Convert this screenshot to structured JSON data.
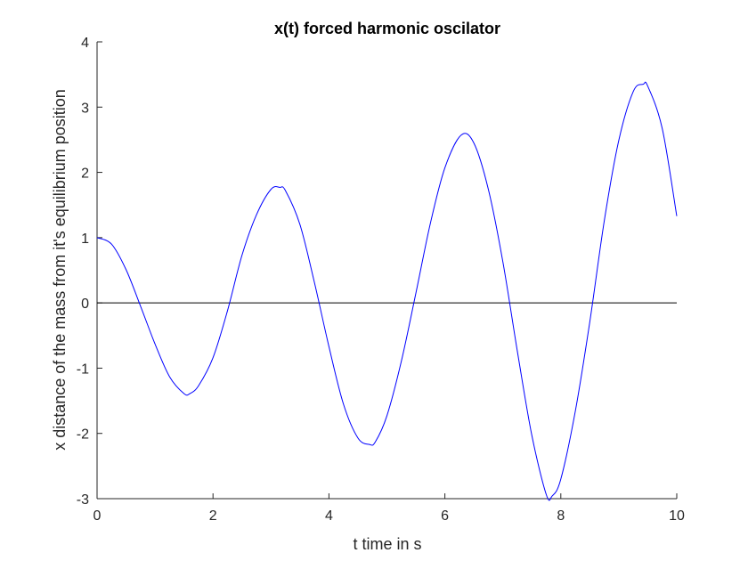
{
  "chart_data": {
    "type": "line",
    "title": "x(t) forced harmonic oscilator",
    "xlabel": "t time in s",
    "ylabel": "x distance of the mass from it's equilibrium position",
    "xlim": [
      0,
      10
    ],
    "ylim": [
      -3,
      4
    ],
    "xticks": [
      0,
      2,
      4,
      6,
      8,
      10
    ],
    "xtick_labels": [
      "0",
      "2",
      "4",
      "6",
      "8",
      "10"
    ],
    "yticks": [
      -3,
      -2,
      -1,
      0,
      1,
      2,
      3,
      4
    ],
    "ytick_labels": [
      "-3",
      "-2",
      "-1",
      "0",
      "1",
      "2",
      "3",
      "4"
    ],
    "grid": false,
    "reference_line": {
      "y": 0,
      "color": "#000000"
    },
    "series": [
      {
        "color": "#0000ff",
        "x": [
          0,
          0.25,
          0.5,
          0.75,
          1.0,
          1.25,
          1.5,
          1.6,
          1.75,
          2.0,
          2.25,
          2.5,
          2.75,
          3.0,
          3.15,
          3.25,
          3.5,
          3.75,
          4.0,
          4.25,
          4.5,
          4.7,
          4.8,
          5.0,
          5.25,
          5.5,
          5.75,
          6.0,
          6.28,
          6.5,
          6.75,
          7.0,
          7.25,
          7.5,
          7.75,
          7.85,
          8.0,
          8.25,
          8.5,
          8.75,
          9.0,
          9.25,
          9.42,
          9.5,
          9.75,
          10.0
        ],
        "y": [
          1.0,
          0.9,
          0.51,
          -0.05,
          -0.63,
          -1.13,
          -1.39,
          -1.39,
          -1.27,
          -0.84,
          -0.12,
          0.73,
          1.35,
          1.74,
          1.77,
          1.72,
          1.2,
          0.31,
          -0.67,
          -1.55,
          -2.07,
          -2.17,
          -2.13,
          -1.73,
          -0.89,
          0.15,
          1.22,
          2.07,
          2.57,
          2.45,
          1.74,
          0.63,
          -0.74,
          -2.03,
          -2.94,
          -2.96,
          -2.7,
          -1.66,
          -0.29,
          1.26,
          2.49,
          3.24,
          3.35,
          3.32,
          2.67,
          1.33
        ]
      }
    ]
  }
}
